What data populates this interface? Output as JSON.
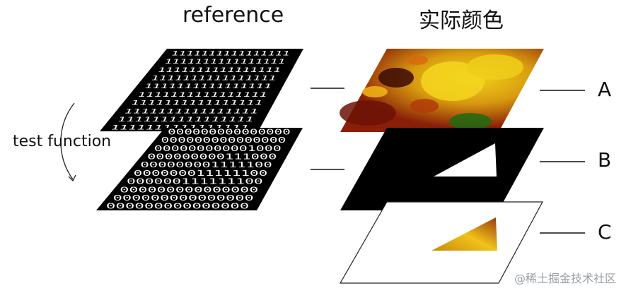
{
  "headings": {
    "reference": "reference",
    "actual_color": "实际颜色"
  },
  "side_label": "test function",
  "layer_labels": {
    "a": "A",
    "b": "B",
    "c": "C"
  },
  "digits": {
    "top": "1",
    "bottom_rows": [
      "000000000000000",
      "000000000000000",
      "000000000001000",
      "000000000111000",
      "000000001111100",
      "000000011111100",
      "000000111111100",
      "000000000000000",
      "000000000000000",
      "000000000000000"
    ]
  },
  "watermark": "@稀土掘金技术社区",
  "colors": {
    "plane": "#000000",
    "text_white": "#ffffff",
    "triangle_yellow": "#e3b312"
  }
}
